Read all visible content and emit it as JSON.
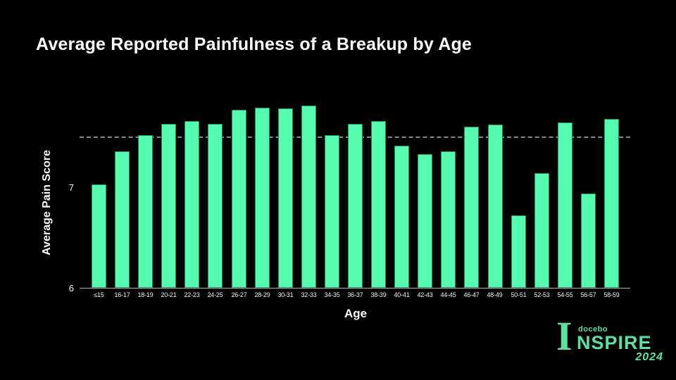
{
  "page": {
    "background": "#000000",
    "text_color": "#FFFFFF"
  },
  "chart_data": {
    "type": "bar",
    "title": "Average Reported Painfulness of a Breakup by Age",
    "xlabel": "Age",
    "ylabel": "Average Pain Score",
    "categories": [
      "≤15",
      "16-17",
      "18-19",
      "20-21",
      "22-23",
      "24-25",
      "26-27",
      "28-29",
      "30-31",
      "32-33",
      "34-35",
      "36-37",
      "38-39",
      "40-41",
      "42-43",
      "44-45",
      "46-47",
      "48-49",
      "50-51",
      "52-53",
      "54-55",
      "56-57",
      "58-59"
    ],
    "values": [
      7.03,
      7.36,
      7.52,
      7.63,
      7.66,
      7.63,
      7.77,
      7.79,
      7.78,
      7.81,
      7.52,
      7.63,
      7.66,
      7.41,
      7.33,
      7.36,
      7.6,
      7.62,
      6.72,
      7.14,
      7.64,
      6.94,
      7.68
    ],
    "ylim": [
      6,
      8
    ],
    "yticks": [
      7,
      6
    ],
    "reference_line_y": 7.5,
    "reference_line_style": "dashed",
    "bar_color": "#55FBAF",
    "bar_edge_color": "#1C8A57",
    "axis_color": "#B3B3B3",
    "grid": "off",
    "legend": "none"
  },
  "branding": {
    "big_letter": "I",
    "brand": "docebo",
    "word_rest": "NSPIRE",
    "year": "2024",
    "color": "#5CE0A2"
  }
}
